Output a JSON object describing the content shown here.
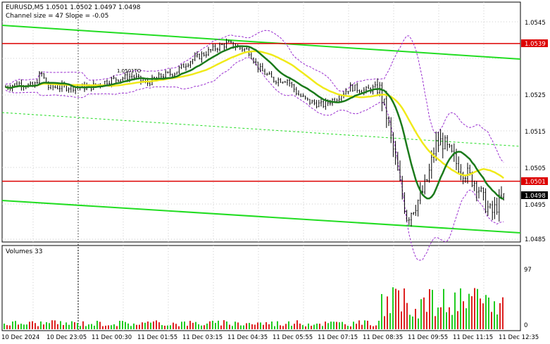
{
  "header": {
    "symbol_line": "EURUSD,M5  1.0501 1.0502 1.0497 1.0498",
    "indicator_line": "Channel size = 47 Slope = -0.05"
  },
  "price_annotation": "1.0501TO",
  "volume_label": "Volumes 33",
  "price_axis": [
    "1.0545",
    "1.0535",
    "1.0525",
    "1.0515",
    "1.0505",
    "1.0495",
    "1.0485"
  ],
  "price_tags": {
    "upper_level": "1.0539",
    "lower_level": "1.0501",
    "current": "1.0498"
  },
  "volume_axis": {
    "max": "97",
    "min": "0"
  },
  "time_axis": [
    "10 Dec 2024",
    "10 Dec 23:05",
    "11 Dec 00:30",
    "11 Dec 01:55",
    "11 Dec 03:15",
    "11 Dec 04:35",
    "11 Dec 05:55",
    "11 Dec 07:15",
    "11 Dec 08:35",
    "11 Dec 09:55",
    "11 Dec 11:15",
    "11 Dec 12:35"
  ],
  "colors": {
    "bullish": "#000000",
    "bearish": "#000000",
    "ma_fast": "#1b7a1b",
    "ma_slow": "#f0ea1a",
    "channel": "#22dd22",
    "level": "#dd0000",
    "envelope": "#9a2fd0",
    "volume_up": "#22cc22",
    "volume_down": "#dd2222",
    "current_tag": "#000000"
  },
  "chart_data": {
    "type": "candlestick",
    "symbol": "EURUSD",
    "timeframe": "M5",
    "last_bar": {
      "open": 1.0501,
      "high": 1.0502,
      "low": 1.0497,
      "close": 1.0498
    },
    "horizontal_levels": [
      1.0539,
      1.0501
    ],
    "channel": {
      "size": 47,
      "slope": -0.05
    },
    "ylim": [
      1.048,
      1.055
    ],
    "current_price": 1.0498,
    "volume": {
      "current": 33,
      "axis_max": 97
    }
  }
}
